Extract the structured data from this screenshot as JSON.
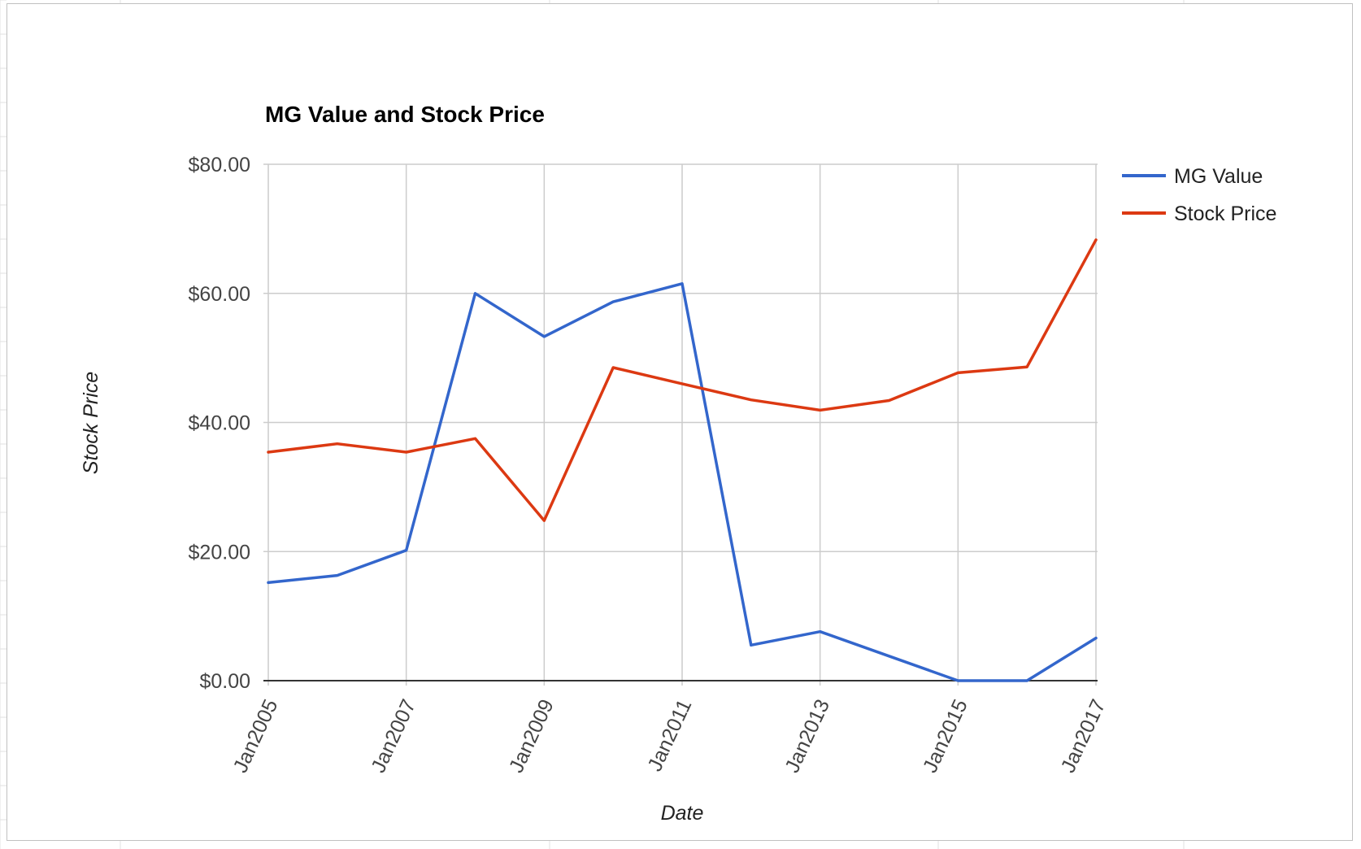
{
  "chart_data": {
    "type": "line",
    "title": "MG Value and Stock Price",
    "xlabel": "Date",
    "ylabel": "Stock Price",
    "x": [
      "2005-01",
      "2006-01",
      "2007-01",
      "2008-01",
      "2009-01",
      "2010-01",
      "2011-01",
      "2012-01",
      "2013-01",
      "2014-01",
      "2015-01",
      "2016-01",
      "2017-01"
    ],
    "x_tick_labels": [
      "Jan2005",
      "Jan2007",
      "Jan2009",
      "Jan2011",
      "Jan2013",
      "Jan2015",
      "Jan2017"
    ],
    "x_tick_values": [
      "2005-01",
      "2007-01",
      "2009-01",
      "2011-01",
      "2013-01",
      "2015-01",
      "2017-01"
    ],
    "ylim": [
      0,
      80
    ],
    "y_ticks": [
      0,
      20,
      40,
      60,
      80
    ],
    "y_tick_labels": [
      "$0.00",
      "$20.00",
      "$40.00",
      "$60.00",
      "$80.00"
    ],
    "grid": true,
    "legend_position": "right",
    "series": [
      {
        "name": "MG Value",
        "color": "#3366cc",
        "values": [
          15.2,
          16.3,
          20.2,
          60.0,
          53.3,
          58.7,
          61.5,
          5.5,
          7.6,
          3.8,
          0.0,
          0.0,
          6.6
        ]
      },
      {
        "name": "Stock Price",
        "color": "#dc3912",
        "values": [
          35.4,
          36.7,
          35.4,
          37.5,
          24.8,
          48.5,
          46.0,
          43.5,
          41.9,
          43.4,
          47.7,
          48.6,
          68.3
        ]
      }
    ]
  }
}
